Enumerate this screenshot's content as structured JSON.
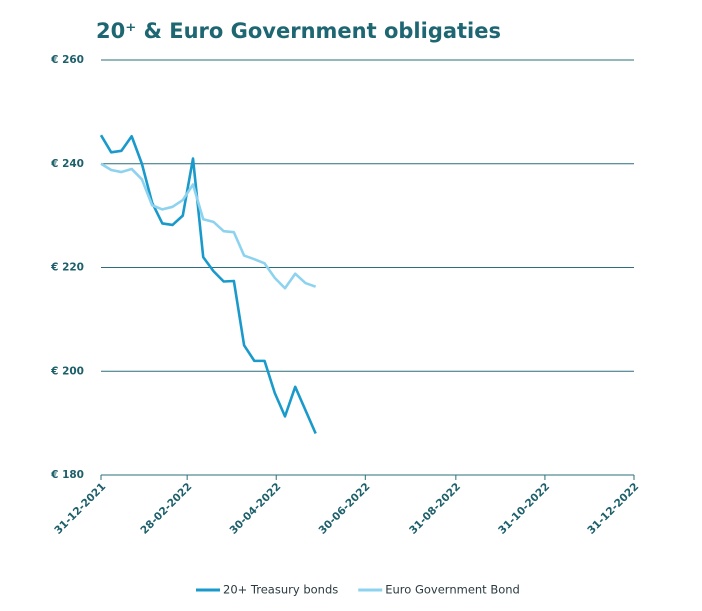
{
  "chart_data": {
    "type": "line",
    "title": "20⁺ & Euro Government obligaties",
    "x": [
      "2021-12-31",
      "2022-01-07",
      "2022-01-14",
      "2022-01-21",
      "2022-01-28",
      "2022-02-04",
      "2022-02-11",
      "2022-02-18",
      "2022-02-25",
      "2022-03-04",
      "2022-03-11",
      "2022-03-18",
      "2022-03-25",
      "2022-04-01",
      "2022-04-08",
      "2022-04-15",
      "2022-04-22",
      "2022-04-29",
      "2022-05-06",
      "2022-05-13",
      "2022-05-20",
      "2022-05-27"
    ],
    "series": [
      {
        "name": "20+ Treasury bonds",
        "color": "#1a9acb",
        "values": [
          245.5,
          242.2,
          242.5,
          245.3,
          240,
          232.5,
          228.5,
          228.2,
          230,
          241,
          222,
          219.3,
          217.3,
          217.4,
          205,
          202,
          202,
          195.8,
          191.3,
          197,
          192.5,
          188
        ]
      },
      {
        "name": "Euro Government Bond",
        "color": "#8dd3ef",
        "values": [
          240,
          238.8,
          238.4,
          239,
          237,
          232,
          231.2,
          231.7,
          233,
          236,
          229.3,
          228.8,
          227,
          226.8,
          222.3,
          221.6,
          220.8,
          218,
          216,
          218.8,
          217,
          216.3
        ]
      }
    ],
    "xlim": [
      "2021-12-31",
      "2022-12-31"
    ],
    "xticks": [
      {
        "value": "2021-12-31",
        "label": "31-12-2021"
      },
      {
        "value": "2022-02-28",
        "label": "28-02-2022"
      },
      {
        "value": "2022-04-30",
        "label": "30-04-2022"
      },
      {
        "value": "2022-06-30",
        "label": "30-06-2022"
      },
      {
        "value": "2022-08-31",
        "label": "31-08-2022"
      },
      {
        "value": "2022-10-31",
        "label": "31-10-2022"
      },
      {
        "value": "2022-12-31",
        "label": "31-12-2022"
      }
    ],
    "ylim": [
      180,
      260
    ],
    "yticks": [
      {
        "value": 180,
        "label": "€ 180"
      },
      {
        "value": 200,
        "label": "€ 200"
      },
      {
        "value": 220,
        "label": "€ 220"
      },
      {
        "value": 240,
        "label": "€ 240"
      },
      {
        "value": 260,
        "label": "€ 260"
      }
    ],
    "grid": true,
    "legend": "bottom"
  }
}
